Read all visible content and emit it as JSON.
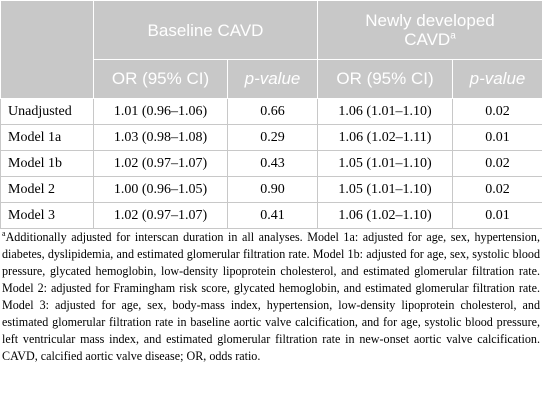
{
  "table": {
    "group_headers": {
      "baseline": "Baseline CAVD",
      "new_line1": "Newly developed",
      "new_line2": "CAVD",
      "new_sup": "a"
    },
    "col_headers": {
      "or1": "OR (95% CI)",
      "p1": "p-value",
      "or2": "OR (95% CI)",
      "p2": "p-value"
    },
    "rows": [
      {
        "label": "Unadjusted",
        "or1": "1.01 (0.96–1.06)",
        "p1": "0.66",
        "or2": "1.06 (1.01–1.10)",
        "p2": "0.02"
      },
      {
        "label": "Model 1a",
        "or1": "1.03 (0.98–1.08)",
        "p1": "0.29",
        "or2": "1.06 (1.02–1.11)",
        "p2": "0.01"
      },
      {
        "label": "Model 1b",
        "or1": "1.02 (0.97–1.07)",
        "p1": "0.43",
        "or2": "1.05 (1.01–1.10)",
        "p2": "0.02"
      },
      {
        "label": "Model 2",
        "or1": "1.00 (0.96–1.05)",
        "p1": "0.90",
        "or2": "1.05 (1.01–1.10)",
        "p2": "0.02"
      },
      {
        "label": "Model 3",
        "or1": "1.02 (0.97–1.07)",
        "p1": "0.41",
        "or2": "1.06 (1.02–1.10)",
        "p2": "0.01"
      }
    ]
  },
  "footnote": {
    "marker": "a",
    "text": "Additionally adjusted for interscan duration in all analyses. Model 1a: adjusted for age, sex, hypertension, diabetes, dyslipidemia, and estimated glomerular filtration rate. Model 1b: adjusted for age, sex, systolic blood pressure, glycated hemoglobin, low-density lipoprotein cholesterol, and estimated glomerular filtration rate. Model 2: adjusted for Framingham risk score, glycated hemoglobin, and estimated glomerular filtration rate. Model 3: adjusted for age, sex, body-mass index, hypertension, low-density lipoprotein cholesterol, and estimated glomerular filtration rate in baseline aortic valve calcification, and for age, systolic blood pressure, left ventricular mass index, and estimated glomerular filtration rate in new-onset aortic valve calcification. CAVD, calcified aortic valve disease; OR, odds ratio."
  }
}
